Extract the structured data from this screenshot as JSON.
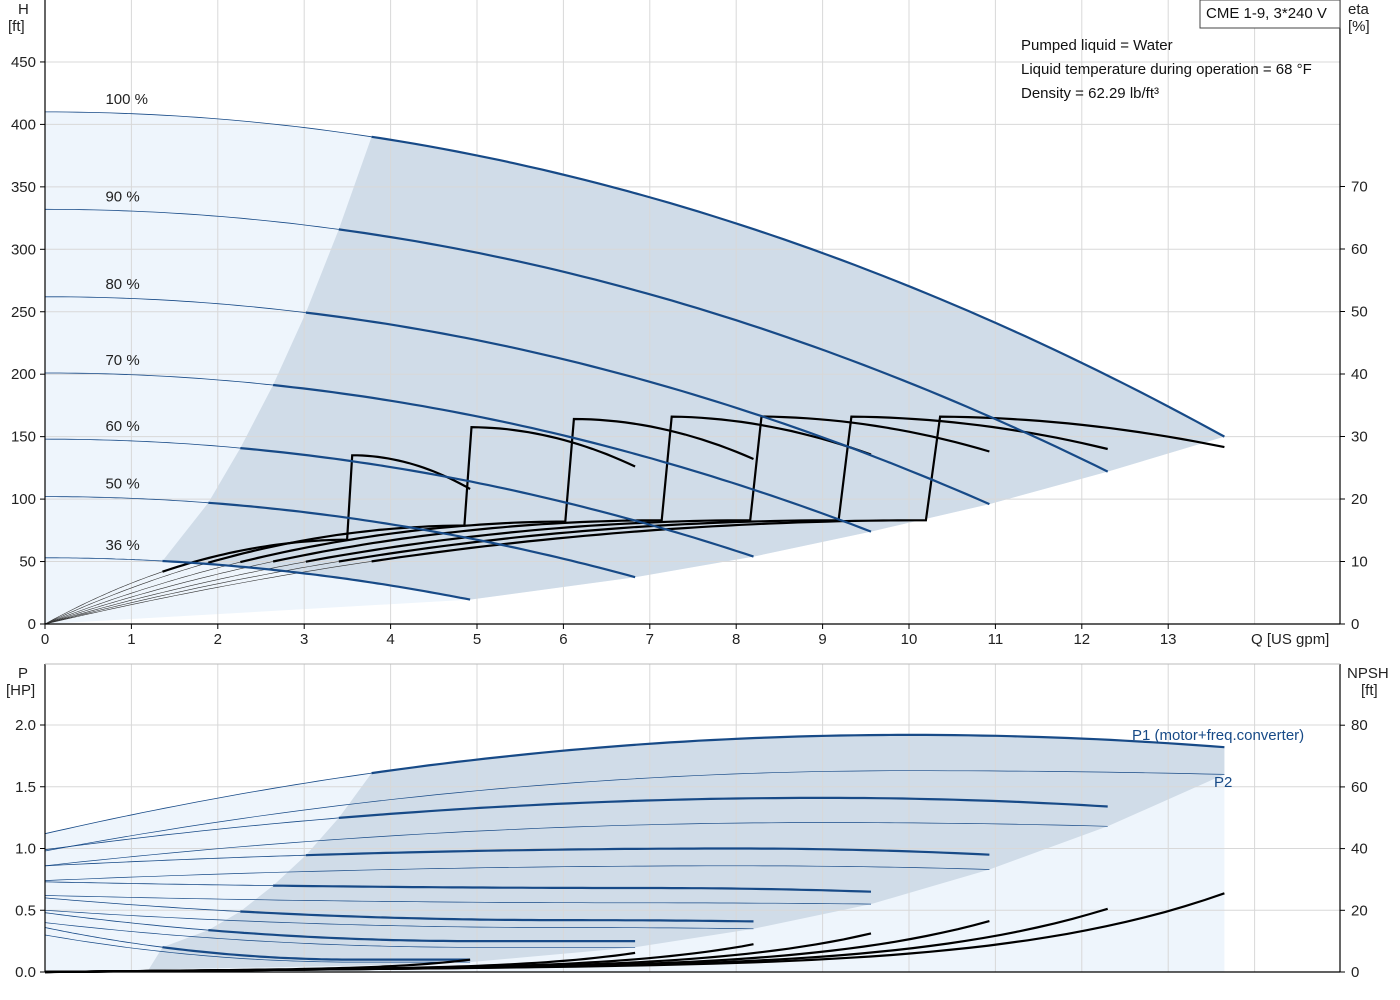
{
  "title_box": "CME 1-9, 3*240 V",
  "info": [
    "Pumped liquid = Water",
    "Liquid temperature during operation = 68 °F",
    "Density = 62.29 lb/ft³"
  ],
  "colors": {
    "curve_blue": "#174a87",
    "shade_dark": "#d0dce8",
    "shade_light": "#eef5fc",
    "grid": "#d8d8d8",
    "black": "#000000"
  },
  "chart_data": [
    {
      "type": "line",
      "name": "head-efficiency",
      "xlabel": "Q [US gpm]",
      "ylabel_lines": [
        "H",
        "[ft]"
      ],
      "y2label_lines": [
        "eta",
        "[%]"
      ],
      "xlim": [
        0,
        15
      ],
      "xticks": [
        0,
        1,
        2,
        3,
        4,
        5,
        6,
        7,
        8,
        9,
        10,
        11,
        12,
        13
      ],
      "ylim": [
        0,
        480
      ],
      "yticks": [
        0,
        50,
        100,
        150,
        200,
        250,
        300,
        350,
        400,
        450
      ],
      "y2lim": [
        0,
        70
      ],
      "y2ticks": [
        0,
        10,
        20,
        30,
        40,
        50,
        60,
        70
      ],
      "head_curves": [
        {
          "label": "100 %",
          "shutoff": 410,
          "qmax": 13.65,
          "hend": 150,
          "qstart": 3.78
        },
        {
          "label": "90 %",
          "shutoff": 332,
          "qmax": 12.3,
          "hend": 122,
          "qstart": 3.4
        },
        {
          "label": "80 %",
          "shutoff": 262,
          "qmax": 10.93,
          "hend": 96,
          "qstart": 3.02
        },
        {
          "label": "70 %",
          "shutoff": 201,
          "qmax": 9.56,
          "hend": 74,
          "qstart": 2.64
        },
        {
          "label": "60 %",
          "shutoff": 148,
          "qmax": 8.2,
          "hend": 54,
          "qstart": 2.26
        },
        {
          "label": "50 %",
          "shutoff": 102,
          "qmax": 6.83,
          "hend": 37.5,
          "qstart": 1.89
        },
        {
          "label": "36 %",
          "shutoff": 53,
          "qmax": 4.92,
          "hend": 19.5,
          "qstart": 1.36
        }
      ],
      "eta_curves": [
        {
          "peak_q": 10.2,
          "peak": 33.2,
          "qmax": 13.65,
          "end": 28.3,
          "qstart": 3.78
        },
        {
          "peak_q": 9.2,
          "peak": 33.2,
          "qmax": 12.3,
          "end": 28.0,
          "qstart": 3.4
        },
        {
          "peak_q": 8.2,
          "peak": 33.2,
          "qmax": 10.93,
          "end": 27.6,
          "qstart": 3.02
        },
        {
          "peak_q": 7.15,
          "peak": 33.2,
          "qmax": 9.56,
          "end": 27.1,
          "qstart": 2.64
        },
        {
          "peak_q": 6.1,
          "peak": 32.8,
          "qmax": 8.2,
          "end": 26.4,
          "qstart": 2.26
        },
        {
          "peak_q": 4.9,
          "peak": 31.5,
          "qmax": 6.83,
          "end": 25.2,
          "qstart": 1.89
        },
        {
          "peak_q": 3.55,
          "peak": 27.0,
          "qmax": 4.92,
          "end": 21.6,
          "qstart": 1.36
        }
      ]
    },
    {
      "type": "line",
      "name": "power-npsh",
      "ylabel_lines": [
        "P",
        "[HP]"
      ],
      "y2label_lines": [
        "NPSH",
        "[ft]"
      ],
      "xlim": [
        0,
        15
      ],
      "ylim": [
        0,
        2.0
      ],
      "yticks": [
        0.0,
        0.5,
        1.0,
        1.5,
        2.0
      ],
      "ytick_labels": [
        "0.0",
        "0.5",
        "1.0",
        "1.5",
        "2.0"
      ],
      "y2lim": [
        0,
        80
      ],
      "y2ticks": [
        0,
        20,
        40,
        60,
        80
      ],
      "series_labels": {
        "p1": "P1 (motor+freq.converter)",
        "p2": "P2"
      },
      "p1_curves": [
        {
          "p0": 1.12,
          "pmax": 1.92,
          "qpeak": 10.0,
          "qmax": 13.65,
          "pend": 1.82,
          "qstart": 3.78
        },
        {
          "p0": 0.99,
          "pmax": 1.41,
          "qpeak": 9.0,
          "qmax": 12.3,
          "pend": 1.34,
          "qstart": 3.4
        },
        {
          "p0": 0.86,
          "pmax": 1.0,
          "qpeak": 8.0,
          "qmax": 10.93,
          "pend": 0.95,
          "qstart": 3.02
        },
        {
          "p0": 0.73,
          "pmax": 0.68,
          "qpeak": 7.0,
          "qmax": 9.56,
          "pend": 0.65,
          "qstart": 2.64
        },
        {
          "p0": 0.6,
          "pmax": 0.42,
          "qpeak": 6.0,
          "qmax": 8.2,
          "pend": 0.41,
          "qstart": 2.26
        },
        {
          "p0": 0.48,
          "pmax": 0.25,
          "qpeak": 5.0,
          "qmax": 6.83,
          "pend": 0.25,
          "qstart": 1.89
        },
        {
          "p0": 0.36,
          "pmax": 0.1,
          "qpeak": 3.6,
          "qmax": 4.92,
          "pend": 0.1,
          "qstart": 1.36
        }
      ],
      "p2_curves": [
        {
          "p0": 0.98,
          "pmax": 1.63,
          "qpeak": 10.0,
          "qmax": 13.65,
          "pend": 1.6
        },
        {
          "p0": 0.86,
          "pmax": 1.21,
          "qpeak": 9.0,
          "qmax": 12.3,
          "pend": 1.18
        },
        {
          "p0": 0.74,
          "pmax": 0.86,
          "qpeak": 8.0,
          "qmax": 10.93,
          "pend": 0.83
        },
        {
          "p0": 0.62,
          "pmax": 0.56,
          "qpeak": 7.0,
          "qmax": 9.56,
          "pend": 0.55
        },
        {
          "p0": 0.5,
          "pmax": 0.36,
          "qpeak": 6.0,
          "qmax": 8.2,
          "pend": 0.35
        },
        {
          "p0": 0.4,
          "pmax": 0.2,
          "qpeak": 5.0,
          "qmax": 6.83,
          "pend": 0.2
        },
        {
          "p0": 0.3,
          "pmax": 0.08,
          "qpeak": 3.6,
          "qmax": 4.92,
          "pend": 0.08
        }
      ],
      "npsh_curves": [
        {
          "qmax": 13.65,
          "base": 3.5,
          "end": 25.5
        },
        {
          "qmax": 12.3,
          "base": 3.2,
          "end": 20.5
        },
        {
          "qmax": 10.93,
          "base": 2.8,
          "end": 16.5
        },
        {
          "qmax": 9.56,
          "base": 2.5,
          "end": 12.5
        },
        {
          "qmax": 8.2,
          "base": 2.2,
          "end": 9.0
        },
        {
          "qmax": 6.83,
          "base": 1.8,
          "end": 6.2
        },
        {
          "qmax": 4.92,
          "base": 1.4,
          "end": 4.0
        }
      ]
    }
  ]
}
